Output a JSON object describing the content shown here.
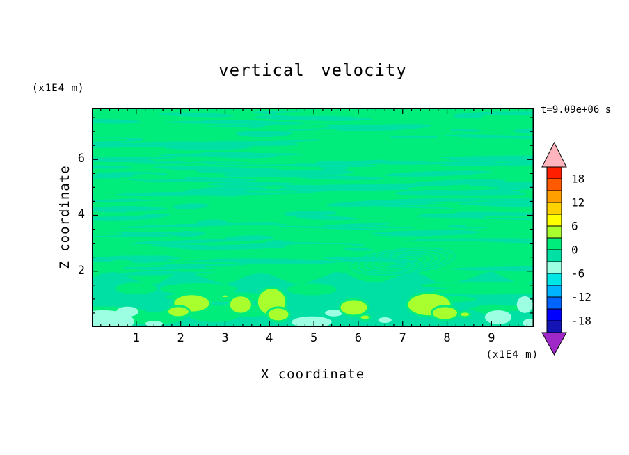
{
  "chart_data": {
    "type": "heatmap",
    "title": "vertical velocity",
    "time_label": "t=9.09e+06 s",
    "xlabel": "X coordinate",
    "ylabel": "Z coordinate",
    "x_unit_label": "(x1E4 m)",
    "z_unit_label": "(x1E4 m)",
    "xlim": [
      0,
      9.95
    ],
    "zlim": [
      0,
      7.85
    ],
    "x_ticks": [
      1,
      2,
      3,
      4,
      5,
      6,
      7,
      8,
      9
    ],
    "z_ticks": [
      2,
      4,
      6
    ],
    "x_minor_step": 0.2,
    "z_minor_step": 0.5,
    "contour_interval": 3,
    "colorbar": {
      "levels": [
        -21,
        -18,
        -15,
        -12,
        -9,
        -6,
        -3,
        0,
        3,
        6,
        9,
        12,
        15,
        18,
        21
      ],
      "labels": [
        "18",
        "12",
        "6",
        "0",
        "-6",
        "-12",
        "-18"
      ],
      "colors_bottom_to_top": [
        "#1414B4",
        "#0000FF",
        "#0064FF",
        "#00B4FF",
        "#00E6E6",
        "#9CFFE2",
        "#00DFA4",
        "#00ED7C",
        "#A9FF2E",
        "#FFFF00",
        "#FFD200",
        "#FFA000",
        "#FF5A00",
        "#FF1E00"
      ],
      "over_arrow_color": "#FFB4BE",
      "under_arrow_color": "#A028C8"
    },
    "field": {
      "background_color": "#00ED7C",
      "band_color": "#00DFA4",
      "positive_color": "#A9FF2E",
      "negative_color": "#9CFFE2",
      "description": "Near-zero vertical velocity almost everywhere (0 to 3 band) threaded by thin wavy horizontal bands of -3 to 0; positive cells of 3 to 6 near the bottom boundary around x=2, 3.3, 4, 5.9 and 7.7; weak negative patches (-6 to -3) near the bottom at x=0-1, 5, 6.6 and 9-10; fine wave-train contours near x=6.5-7.5, z=2-3.",
      "band": {
        "top": 1.75,
        "amplitude": 0.22,
        "wavelength": 1.7
      },
      "streaks": {
        "seed": 11,
        "count": 120,
        "zmin": 1.85,
        "zmax": 7.8
      },
      "swirl": {
        "x": 7.0,
        "z": 2.35,
        "rings": 7
      },
      "positive_cells": [
        {
          "x": 2.25,
          "z": 0.85,
          "rx": 0.42,
          "rz": 0.33
        },
        {
          "x": 1.95,
          "z": 0.55,
          "rx": 0.25,
          "rz": 0.2
        },
        {
          "x": 3.35,
          "z": 0.8,
          "rx": 0.26,
          "rz": 0.33
        },
        {
          "x": 3.0,
          "z": 1.1,
          "rx": 0.09,
          "rz": 0.07
        },
        {
          "x": 4.05,
          "z": 0.9,
          "rx": 0.33,
          "rz": 0.5
        },
        {
          "x": 4.2,
          "z": 0.45,
          "rx": 0.25,
          "rz": 0.25
        },
        {
          "x": 5.9,
          "z": 0.7,
          "rx": 0.32,
          "rz": 0.3
        },
        {
          "x": 6.15,
          "z": 0.35,
          "rx": 0.12,
          "rz": 0.1
        },
        {
          "x": 7.6,
          "z": 0.8,
          "rx": 0.5,
          "rz": 0.42
        },
        {
          "x": 7.95,
          "z": 0.5,
          "rx": 0.3,
          "rz": 0.25
        },
        {
          "x": 8.4,
          "z": 0.45,
          "rx": 0.12,
          "rz": 0.1
        }
      ],
      "negative_patches": [
        {
          "x": 0.25,
          "z": 0.2,
          "rx": 0.7,
          "rz": 0.4
        },
        {
          "x": 0.8,
          "z": 0.55,
          "rx": 0.25,
          "rz": 0.18
        },
        {
          "x": 1.4,
          "z": 0.12,
          "rx": 0.2,
          "rz": 0.1
        },
        {
          "x": 4.95,
          "z": 0.18,
          "rx": 0.45,
          "rz": 0.2
        },
        {
          "x": 5.45,
          "z": 0.5,
          "rx": 0.2,
          "rz": 0.12
        },
        {
          "x": 6.6,
          "z": 0.25,
          "rx": 0.15,
          "rz": 0.1
        },
        {
          "x": 9.15,
          "z": 0.35,
          "rx": 0.3,
          "rz": 0.25
        },
        {
          "x": 9.75,
          "z": 0.8,
          "rx": 0.18,
          "rz": 0.3
        },
        {
          "x": 9.9,
          "z": 0.15,
          "rx": 0.2,
          "rz": 0.15
        }
      ]
    }
  }
}
